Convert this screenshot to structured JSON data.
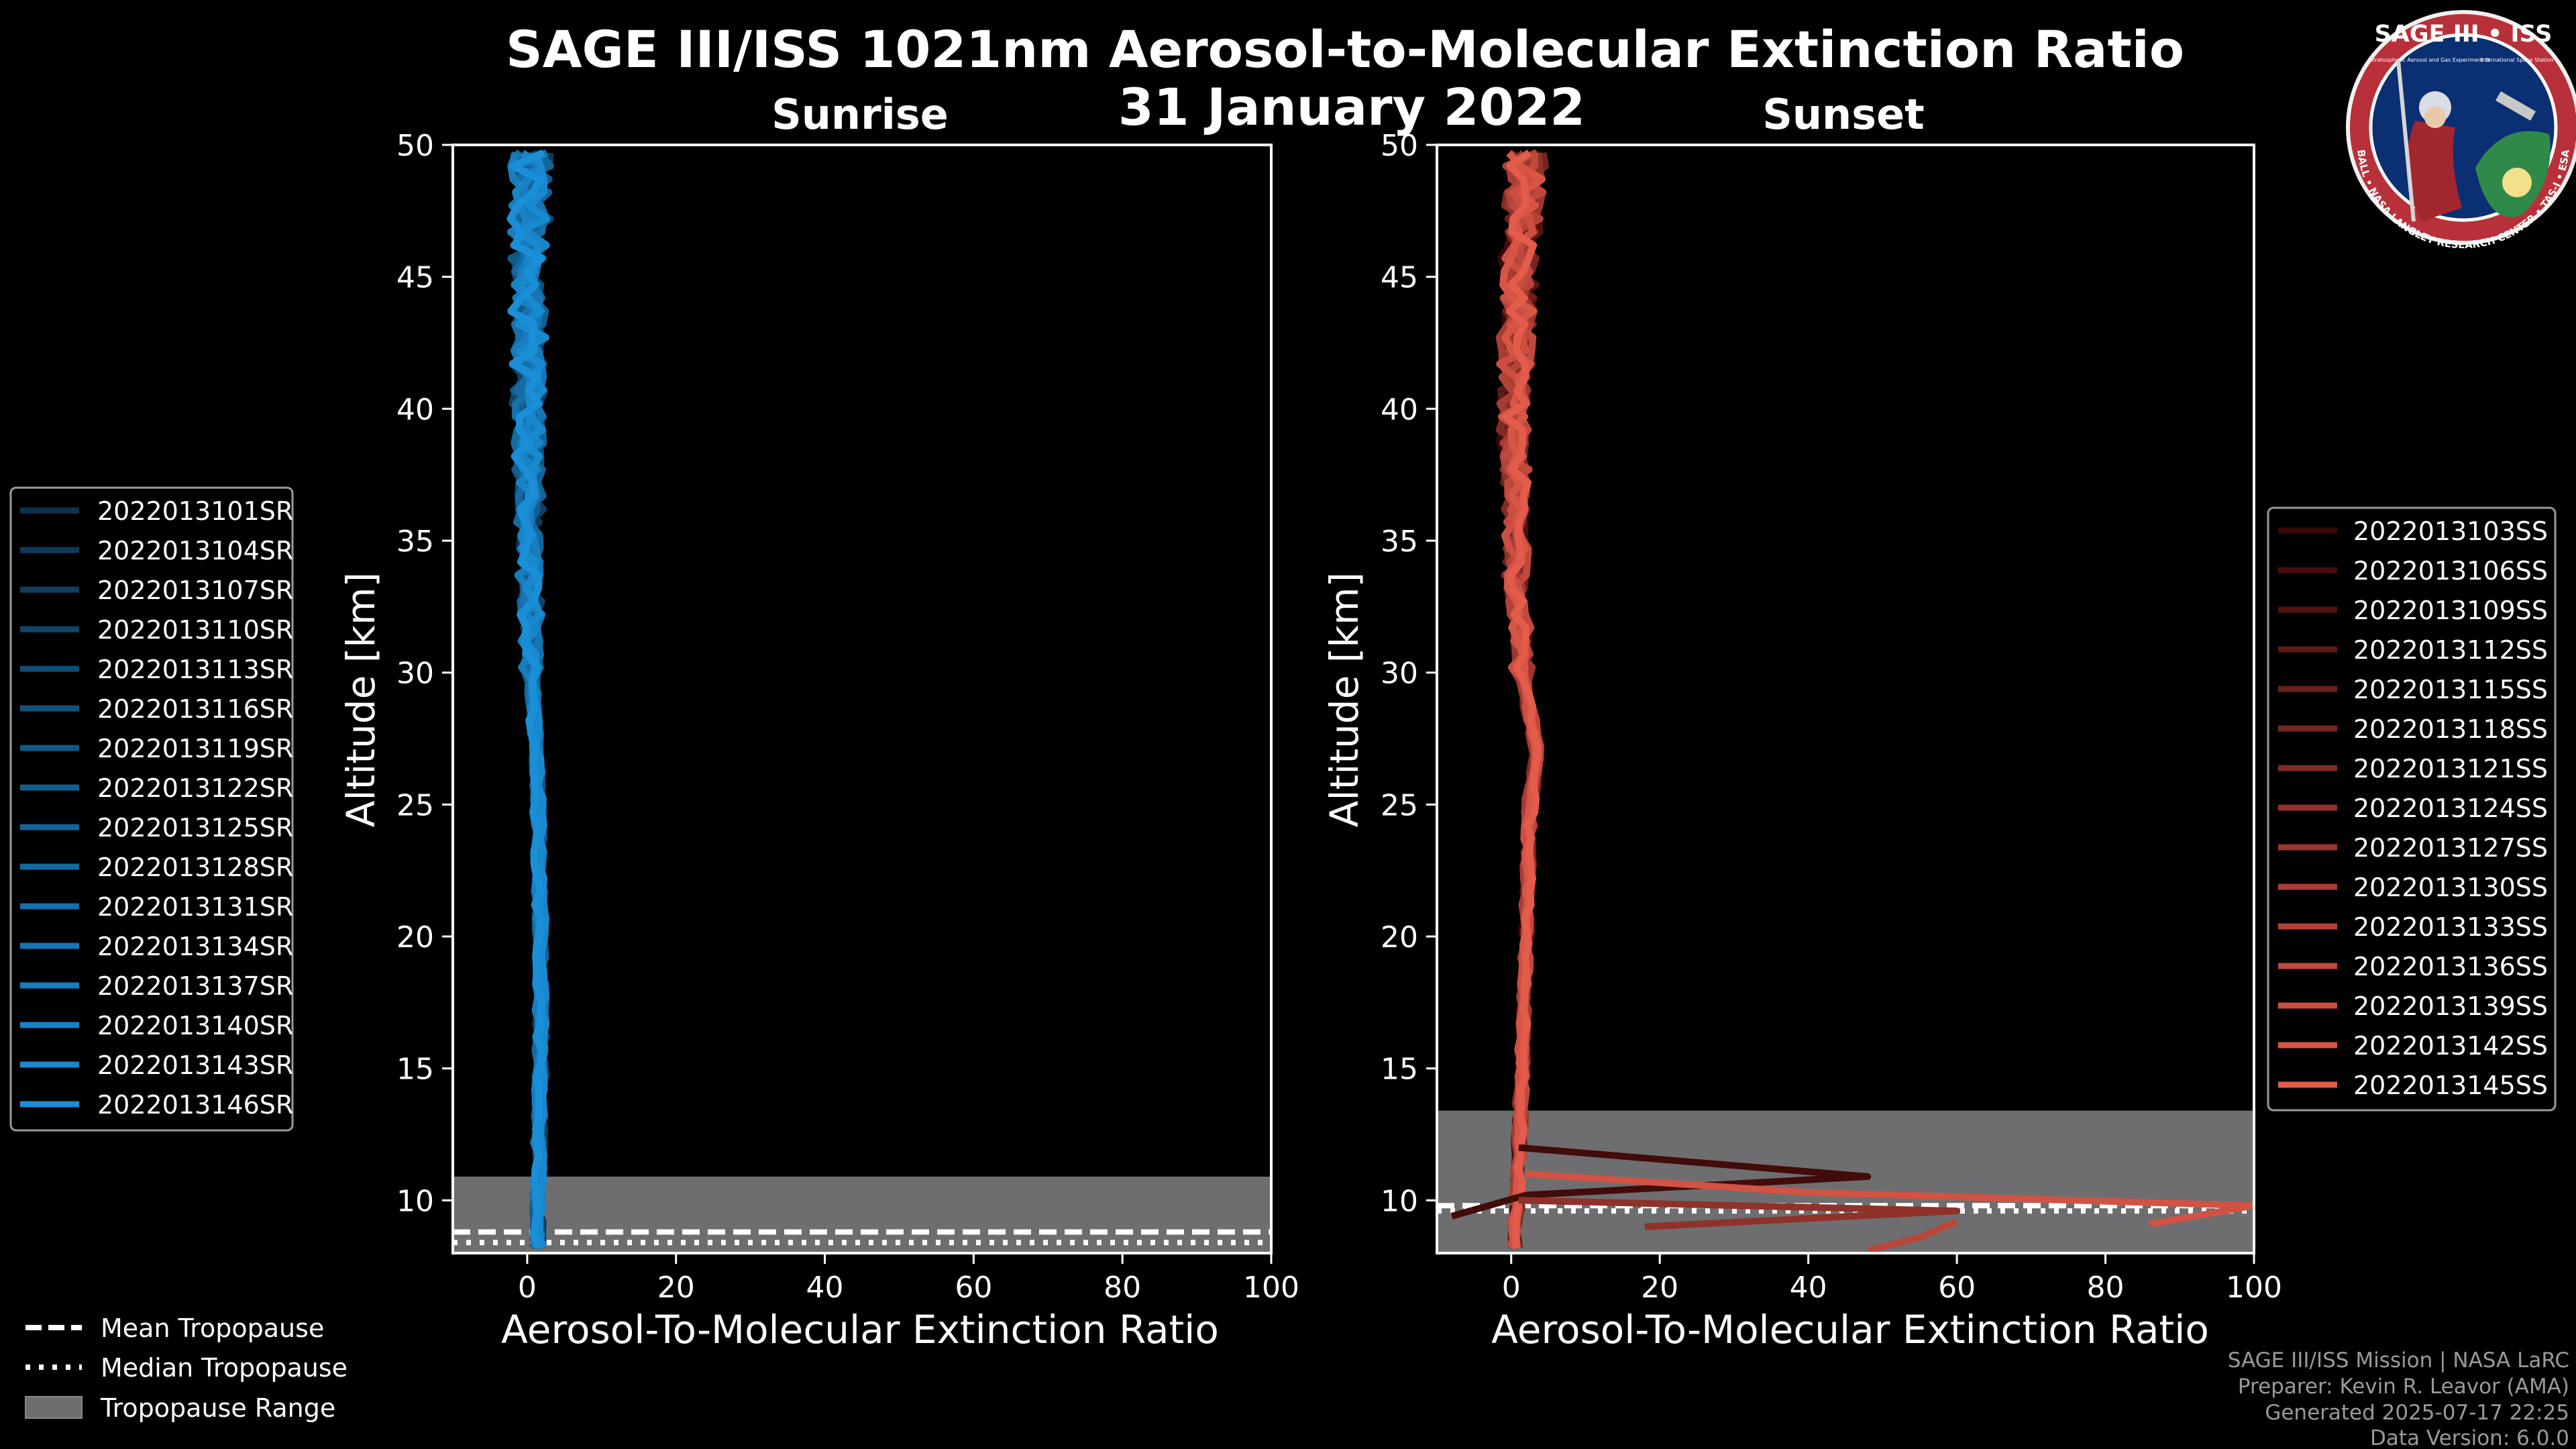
{
  "title": "SAGE III/ISS 1021nm Aerosol-to-Molecular Extinction Ratio",
  "date": "31 January 2022",
  "logo": {
    "text": "SAGE III • ISS",
    "ring_text": "BALL • NASA LANGLEY RESEARCH CENTER • TAS-I • ESA",
    "small_left": "Stratospheric Aerosol and Gas Experiment III",
    "small_right": "International Space Station"
  },
  "credits": [
    "SAGE III/ISS Mission | NASA LaRC",
    "Preparer: Kevin R. Leavor (AMA)",
    "Generated 2025-07-17 22:25",
    "Data Version: 6.0.0"
  ],
  "bottom_legend": [
    {
      "label": "Mean Tropopause",
      "style": "dashed"
    },
    {
      "label": "Median Tropopause",
      "style": "dotted"
    },
    {
      "label": "Tropopause Range",
      "style": "patch"
    }
  ],
  "colors": {
    "sunrise": "#1a8fd8",
    "sunset": "#e35b4a",
    "tropopause_fill": "#6e6e70",
    "axes": "#ffffff",
    "background": "#000000"
  },
  "chart_data": [
    {
      "type": "line",
      "title": "Sunrise",
      "xlabel": "Aerosol-To-Molecular Extinction Ratio",
      "ylabel": "Altitude [km]",
      "xlim": [
        -10,
        100
      ],
      "ylim": [
        8,
        50
      ],
      "xticks": [
        0,
        20,
        40,
        60,
        80,
        100
      ],
      "yticks": [
        10,
        15,
        20,
        25,
        30,
        35,
        40,
        45,
        50
      ],
      "legend_position": "left",
      "tropopause": {
        "mean": 8.8,
        "median": 8.4,
        "range": [
          8.0,
          10.9
        ]
      },
      "series": [
        {
          "name": "2022013101SR"
        },
        {
          "name": "2022013104SR"
        },
        {
          "name": "2022013107SR"
        },
        {
          "name": "2022013110SR"
        },
        {
          "name": "2022013113SR"
        },
        {
          "name": "2022013116SR"
        },
        {
          "name": "2022013119SR"
        },
        {
          "name": "2022013122SR"
        },
        {
          "name": "2022013125SR"
        },
        {
          "name": "2022013128SR"
        },
        {
          "name": "2022013131SR"
        },
        {
          "name": "2022013134SR"
        },
        {
          "name": "2022013137SR"
        },
        {
          "name": "2022013140SR"
        },
        {
          "name": "2022013143SR"
        },
        {
          "name": "2022013146SR"
        }
      ],
      "profile_envelope": {
        "altitude": [
          8.2,
          10,
          12,
          15,
          20,
          25,
          30,
          35,
          40,
          45,
          50
        ],
        "ratio": [
          1.5,
          1.4,
          1.6,
          1.8,
          1.8,
          1.5,
          0.7,
          0.3,
          0.2,
          0.3,
          0.5
        ]
      }
    },
    {
      "type": "line",
      "title": "Sunset",
      "xlabel": "Aerosol-To-Molecular Extinction Ratio",
      "ylabel": "Altitude [km]",
      "xlim": [
        -10,
        100
      ],
      "ylim": [
        8,
        50
      ],
      "xticks": [
        0,
        20,
        40,
        60,
        80,
        100
      ],
      "yticks": [
        10,
        15,
        20,
        25,
        30,
        35,
        40,
        45,
        50
      ],
      "legend_position": "right",
      "tropopause": {
        "mean": 9.8,
        "median": 9.6,
        "range": [
          8.0,
          13.4
        ]
      },
      "series": [
        {
          "name": "2022013103SS"
        },
        {
          "name": "2022013106SS"
        },
        {
          "name": "2022013109SS"
        },
        {
          "name": "2022013112SS"
        },
        {
          "name": "2022013115SS"
        },
        {
          "name": "2022013118SS"
        },
        {
          "name": "2022013121SS"
        },
        {
          "name": "2022013124SS"
        },
        {
          "name": "2022013127SS"
        },
        {
          "name": "2022013130SS"
        },
        {
          "name": "2022013133SS"
        },
        {
          "name": "2022013136SS"
        },
        {
          "name": "2022013139SS"
        },
        {
          "name": "2022013142SS"
        },
        {
          "name": "2022013145SS"
        }
      ],
      "spikes": [
        {
          "altitude": [
            12.0,
            10.9,
            10.2,
            9.4
          ],
          "ratio": [
            1,
            48,
            2,
            -8
          ]
        },
        {
          "altitude": [
            11.0,
            10.3,
            9.8,
            9.1
          ],
          "ratio": [
            2,
            40,
            100,
            86
          ]
        },
        {
          "altitude": [
            10.0,
            9.6,
            9.0
          ],
          "ratio": [
            1,
            60,
            18
          ]
        },
        {
          "altitude": [
            9.2,
            8.6,
            8.1
          ],
          "ratio": [
            60,
            55,
            48
          ]
        }
      ],
      "profile_envelope": {
        "altitude": [
          8.2,
          10,
          12,
          15,
          20,
          25,
          27,
          30,
          35,
          40,
          45,
          50
        ],
        "ratio": [
          0.5,
          0.8,
          1.0,
          1.5,
          2.0,
          2.5,
          3.5,
          1.5,
          0.5,
          0.5,
          1.0,
          2.0
        ]
      }
    }
  ]
}
